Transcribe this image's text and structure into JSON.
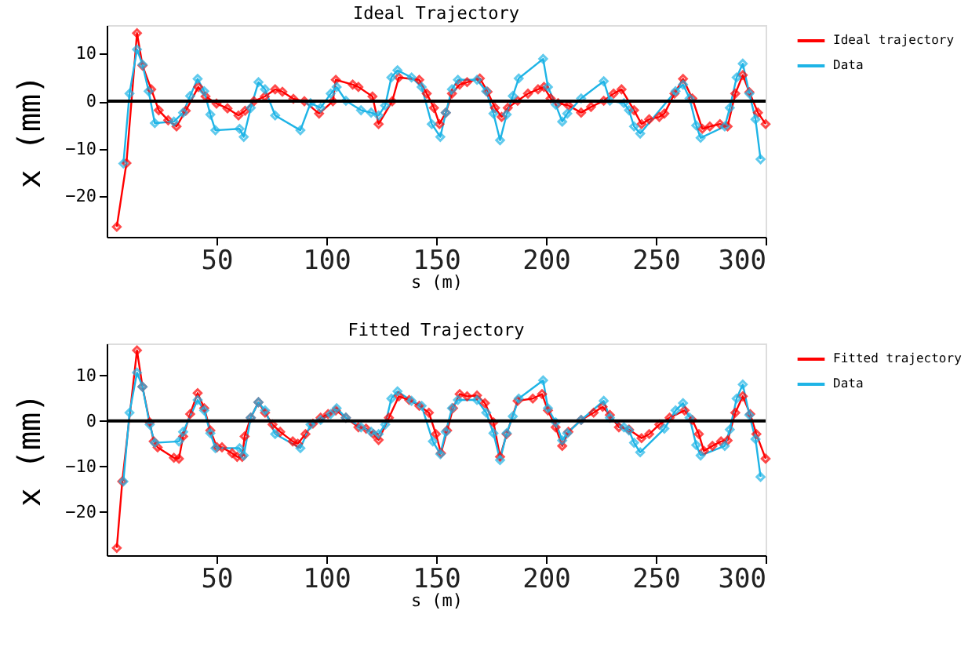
{
  "chart_data": [
    {
      "type": "line",
      "title": "Ideal Trajectory",
      "xlabel": "s (m)",
      "ylabel": "x  (mm)",
      "xlim": [
        0,
        300
      ],
      "ylim": [
        -28.5,
        16
      ],
      "xticks": [
        50,
        100,
        150,
        200,
        250,
        300
      ],
      "yticks": [
        -20,
        -10,
        0,
        10
      ],
      "grid": false,
      "legend": "top right",
      "marker": "diamond",
      "line_style": "solid",
      "ref_lines": [
        {
          "axis": "y",
          "value": 0,
          "color": "#000000"
        }
      ],
      "series": [
        {
          "name": "Ideal trajectory",
          "color": "#ff0000",
          "x": [
            4.6,
            9,
            13.8,
            16.3,
            20.3,
            23.7,
            28,
            31.8,
            36,
            41.7,
            45,
            50,
            55,
            60,
            63,
            67,
            72,
            76.7,
            80,
            85,
            90,
            96.7,
            103,
            104.3,
            112,
            114.6,
            121,
            123.8,
            130,
            133,
            142.3,
            145.7,
            149,
            151.5,
            154.4,
            157.2,
            160.7,
            164.1,
            169.9,
            173.4,
            176.8,
            179.8,
            182.6,
            187.1,
            191.8,
            196.4,
            199.1,
            202.1,
            205.5,
            210.2,
            216,
            220.5,
            226.3,
            230.8,
            234.4,
            240.1,
            243.5,
            247,
            251.6,
            253.9,
            258.5,
            262.4,
            266.6,
            271.2,
            274.6,
            279.2,
            282.7,
            286.2,
            289.6,
            292.6,
            296.5,
            300
          ],
          "values": [
            -26.4,
            -13,
            14.3,
            7.5,
            2.5,
            -1.9,
            -4,
            -5.3,
            -2,
            3,
            1,
            -0.5,
            -1.5,
            -3,
            -2,
            0,
            1,
            2.5,
            2,
            0.5,
            0,
            -2.6,
            0,
            4.5,
            3.5,
            3,
            1,
            -4.8,
            0,
            5,
            4.5,
            1.6,
            -1.4,
            -4.8,
            -2.4,
            1.6,
            3.5,
            4,
            4.8,
            2,
            -1.4,
            -3.3,
            -1.4,
            0.1,
            1.6,
            2.5,
            3,
            0.6,
            -0.4,
            -0.9,
            -2.4,
            -1.2,
            0.1,
            1.6,
            2.5,
            -1.9,
            -4.8,
            -3.8,
            -3.3,
            -2.6,
            1.6,
            4.7,
            0.6,
            -5.8,
            -5.3,
            -4.8,
            -5.3,
            1.6,
            5.5,
            1.9,
            -2.4,
            -4.8
          ]
        },
        {
          "name": "Data",
          "color": "#1eb4e6",
          "x": [
            7.6,
            10.4,
            13.8,
            16.3,
            19.1,
            21.9,
            30.6,
            34.8,
            38,
            41.4,
            44.4,
            47.2,
            49.5,
            60.5,
            62.4,
            65.6,
            69.1,
            72.1,
            76.7,
            88.2,
            92.8,
            97.4,
            102,
            104.7,
            108.9,
            115.8,
            120.4,
            123.8,
            126.8,
            129.6,
            132.4,
            138.8,
            143.4,
            148,
            151.9,
            154.4,
            157.2,
            159.9,
            168.6,
            172.8,
            176.1,
            179.1,
            182.1,
            184.9,
            187.6,
            198.7,
            200.9,
            204.4,
            207.4,
            209.7,
            216,
            226.3,
            229.1,
            235.5,
            237.8,
            240.1,
            242.9,
            259,
            262.4,
            265.4,
            268.4,
            270.4,
            281.4,
            283.7,
            286.8,
            289.6,
            292.6,
            295.4,
            297.7
          ],
          "values": [
            -13.1,
            1.6,
            10.9,
            7.7,
            2.1,
            -4.6,
            -4.3,
            -2.4,
            1.1,
            4.7,
            2.1,
            -2.8,
            -6.1,
            -5.8,
            -7.5,
            -1.4,
            4,
            2.5,
            -3,
            -6.1,
            -0.4,
            -1.4,
            1.6,
            3,
            0.1,
            -1.9,
            -2.4,
            -3,
            -0.9,
            5,
            6.5,
            5,
            3,
            -4.8,
            -7.5,
            -2.4,
            2.5,
            4.5,
            4.5,
            2.1,
            -2.6,
            -8.2,
            -2.8,
            1.1,
            4.8,
            8.9,
            3,
            -0.7,
            -4.3,
            -2.6,
            0.6,
            4.2,
            0.1,
            -0.4,
            -1.9,
            -5.3,
            -6.8,
            2.1,
            3.5,
            0.6,
            -5.1,
            -7.7,
            -5.3,
            -1.4,
            5,
            7.9,
            1.6,
            -3.8,
            -12.2
          ]
        }
      ]
    },
    {
      "type": "line",
      "title": "Fitted Trajectory",
      "xlabel": "s (m)",
      "ylabel": "x  (mm)",
      "xlim": [
        0,
        300
      ],
      "ylim": [
        -29.5,
        17
      ],
      "xticks": [
        50,
        100,
        150,
        200,
        250,
        300
      ],
      "yticks": [
        -20,
        -10,
        0,
        10
      ],
      "grid": false,
      "legend": "top right",
      "marker": "diamond",
      "line_style": "solid",
      "ref_lines": [
        {
          "axis": "y",
          "value": 0,
          "color": "#000000"
        }
      ],
      "series": [
        {
          "name": "Fitted trajectory",
          "color": "#ff0000",
          "x": [
            4.6,
            7.1,
            13.8,
            16.3,
            19.6,
            21.4,
            23.2,
            30.6,
            32.9,
            34.8,
            38,
            41.4,
            44.4,
            47.2,
            50.2,
            52.5,
            57.1,
            59.4,
            61.7,
            62.8,
            65.6,
            69.1,
            72.1,
            75.5,
            79,
            84.7,
            87,
            90.5,
            93.9,
            97.4,
            100.8,
            104.3,
            108.9,
            114.6,
            118.1,
            121.5,
            123.8,
            128.5,
            133,
            137.7,
            142.3,
            146.7,
            149.9,
            152.2,
            155,
            157.7,
            160.7,
            164.1,
            168.6,
            172.2,
            176.1,
            179.1,
            182.1,
            187.1,
            194,
            198.2,
            200.9,
            204.4,
            207.4,
            210.2,
            216,
            221.7,
            225.8,
            229.1,
            233.2,
            237.8,
            243.5,
            247,
            251.6,
            256.3,
            263.1,
            266.6,
            269.6,
            271.9,
            275.8,
            279.7,
            282.7,
            286.2,
            289.6,
            293,
            295.8,
            300
          ],
          "values": [
            -27.9,
            -13.3,
            15.5,
            7.5,
            -0.3,
            -4.5,
            -5.8,
            -8.1,
            -8.3,
            -3.4,
            1.5,
            6.1,
            2.8,
            -2.1,
            -5.8,
            -5.8,
            -7.1,
            -7.9,
            -7.9,
            -3.4,
            0.7,
            4.1,
            1.8,
            -0.8,
            -2.4,
            -4.5,
            -5,
            -2.9,
            -0.6,
            0.7,
            1.5,
            2.3,
            0.7,
            -1.4,
            -1.7,
            -2.9,
            -4.2,
            0.7,
            5.4,
            4.6,
            3.3,
            1.8,
            -2.9,
            -7.1,
            -2.1,
            2.8,
            5.9,
            5.4,
            5.6,
            3.9,
            -0.3,
            -7.9,
            -2.9,
            4.4,
            4.9,
            5.9,
            2.3,
            -1.4,
            -5.5,
            -2.4,
            0.2,
            1.8,
            3.1,
            1.3,
            -1.4,
            -1.9,
            -3.8,
            -2.9,
            -0.8,
            0.7,
            2.3,
            0.2,
            -2.9,
            -6.6,
            -5.5,
            -4.5,
            -4.3,
            1.8,
            5.4,
            1.5,
            -2.9,
            -8.3
          ]
        },
        {
          "name": "Data",
          "color": "#1eb4e6",
          "x": [
            7.6,
            10.4,
            13.8,
            16.3,
            19.6,
            21.9,
            32.9,
            34.8,
            41.4,
            44.4,
            47.2,
            49.5,
            60.5,
            62.4,
            65.6,
            69.1,
            72.1,
            76.7,
            88.2,
            92.8,
            97.4,
            102,
            104.7,
            108.9,
            115.8,
            120.4,
            123.8,
            126.8,
            129.6,
            132.4,
            138.8,
            143.4,
            148.5,
            151.9,
            154.4,
            157.2,
            159.9,
            168.6,
            172.8,
            176.1,
            179.1,
            182.1,
            184.9,
            187.6,
            198.7,
            200.9,
            204.4,
            207.4,
            209.7,
            216,
            226.3,
            229.1,
            235.5,
            237.8,
            240.1,
            242.9,
            253.9,
            259,
            262.4,
            265.4,
            268.4,
            270.4,
            281.4,
            283.7,
            286.8,
            289.6,
            292.6,
            295.4,
            297.7
          ],
          "values": [
            -13.3,
            1.8,
            10.6,
            7.5,
            -0.8,
            -4.8,
            -4.5,
            -2.4,
            4.6,
            2.3,
            -2.7,
            -6,
            -6,
            -7.6,
            0.7,
            4.1,
            2.3,
            -2.9,
            -6,
            -0.8,
            0.2,
            1.5,
            2.8,
            0.7,
            -1.4,
            -2.4,
            -2.9,
            -0.8,
            4.9,
            6.5,
            4.4,
            3.3,
            -4.5,
            -7.3,
            -2.4,
            2.8,
            4.6,
            4.6,
            1.8,
            -2.7,
            -8.6,
            -2.7,
            1,
            4.9,
            8.9,
            2.8,
            -0.3,
            -4.3,
            -2.7,
            0.2,
            4.4,
            0.7,
            -1.4,
            -2.1,
            -4.8,
            -6.9,
            -1.7,
            2.3,
            3.9,
            0.7,
            -5.3,
            -7.6,
            -5.5,
            -1.9,
            4.9,
            8,
            1.3,
            -4,
            -12.3
          ]
        }
      ]
    }
  ]
}
